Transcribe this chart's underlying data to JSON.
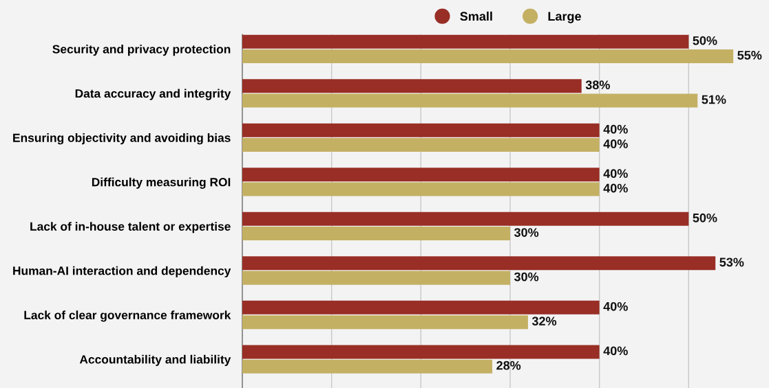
{
  "chart_data": {
    "type": "bar",
    "orientation": "horizontal",
    "categories": [
      "Security and privacy protection",
      "Data accuracy and integrity",
      "Ensuring objectivity and avoiding bias",
      "Difficulty measuring ROI",
      "Lack of in-house talent or expertise",
      "Human-AI interaction and dependency",
      "Lack of clear governance framework",
      "Accountability and liability"
    ],
    "series": [
      {
        "name": "Small",
        "color": "#982e25",
        "values": [
          50,
          38,
          40,
          40,
          50,
          53,
          40,
          40
        ],
        "value_labels": [
          "50%",
          "38%",
          "40%",
          "40%",
          "50%",
          "53%",
          "40%",
          "40%"
        ]
      },
      {
        "name": "Large",
        "color": "#c4b063",
        "values": [
          55,
          51,
          40,
          40,
          30,
          30,
          32,
          28
        ],
        "value_labels": [
          "55%",
          "51%",
          "40%",
          "40%",
          "30%",
          "30%",
          "32%",
          "28%"
        ]
      }
    ],
    "xlim": [
      0,
      59
    ],
    "xticks": [
      {
        "value": 10,
        "label": null
      },
      {
        "value": 20,
        "label": null
      },
      {
        "value": 30,
        "label": null
      },
      {
        "value": 40,
        "label": null
      },
      {
        "value": 50,
        "label": null
      }
    ],
    "tick_labels": "y",
    "grid": "x",
    "legend": "top"
  }
}
